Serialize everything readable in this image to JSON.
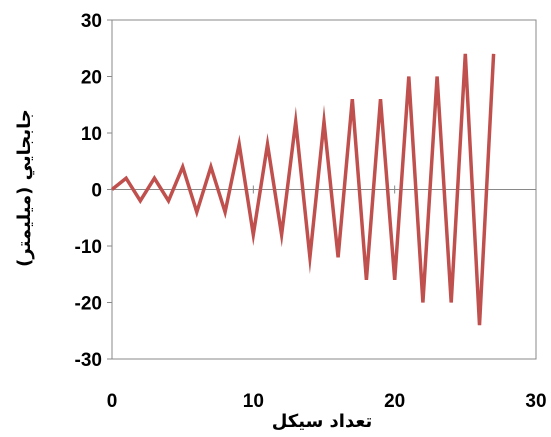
{
  "chart_data": {
    "type": "line",
    "xlabel": "تعداد سيكل",
    "ylabel": "جابجايي (ميليمتر)",
    "xlim": [
      0,
      30
    ],
    "ylim": [
      -30,
      30
    ],
    "xticks": [
      0,
      10,
      20,
      30
    ],
    "yticks": [
      -30,
      -20,
      -10,
      0,
      10,
      20,
      30
    ],
    "grid": false,
    "series": [
      {
        "color": "#c0504d",
        "x": [
          0,
          1,
          2,
          3,
          4,
          5,
          6,
          7,
          8,
          9,
          10,
          11,
          12,
          13,
          14,
          15,
          16,
          17,
          18,
          19,
          20,
          21,
          22,
          23,
          24,
          25,
          26,
          27
        ],
        "y": [
          0,
          2,
          -2,
          2,
          -2,
          4,
          -4,
          4,
          -4,
          8,
          -8,
          8,
          -8,
          12,
          -12,
          12,
          -12,
          16,
          -16,
          16,
          -16,
          20,
          -20,
          20,
          -20,
          24,
          -24,
          24
        ]
      }
    ]
  }
}
